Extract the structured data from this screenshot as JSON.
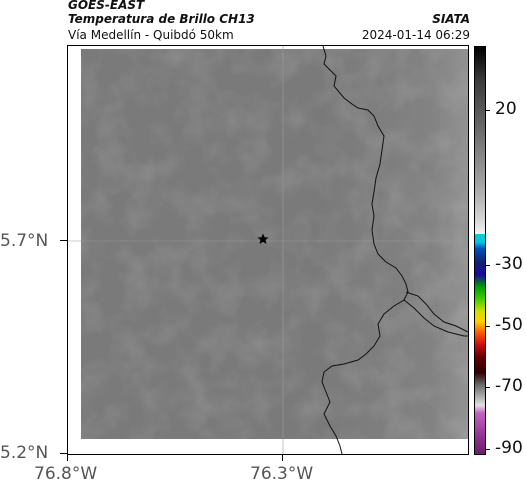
{
  "header": {
    "satellite": "GOES-EAST",
    "product": "Temperatura de Brillo CH13",
    "organization": "SIATA",
    "location": "Vía Medellín - Quibdó 50km",
    "timestamp": "2024-01-14 06:29"
  },
  "axes": {
    "lat_labels": [
      "5.7°N",
      "5.2°N"
    ],
    "lon_labels": [
      "76.8°W",
      "76.3°W"
    ]
  },
  "colorbar": {
    "labels": [
      "20",
      "-30",
      "-50",
      "-70",
      "-90"
    ]
  },
  "map": {
    "marker_icon": "star-icon",
    "background_color": "#7a7a7a",
    "border_color": "#000000"
  }
}
